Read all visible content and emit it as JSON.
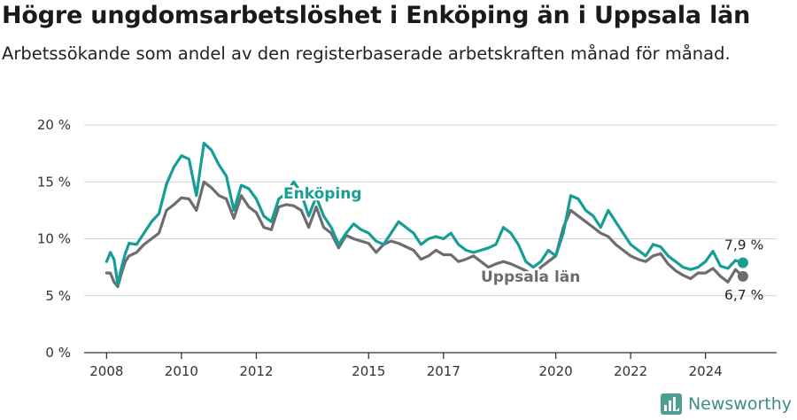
{
  "header": {
    "title": "Högre ungdomsarbetslöshet i Enköping än i Uppsala län",
    "subtitle": "Arbetssökande som andel av den registerbaserade arbetskraften månad för månad."
  },
  "brand": {
    "name": "Newsworthy",
    "icon": "newsworthy-logo-icon"
  },
  "colors": {
    "enkoping": "#169e94",
    "uppsala": "#6d6d71",
    "grid": "#d4d4d4",
    "axis": "#333333"
  },
  "chart_data": {
    "type": "line",
    "title": "Högre ungdomsarbetslöshet i Enköping än i Uppsala län",
    "subtitle": "Arbetssökande som andel av den registerbaserade arbetskraften månad för månad.",
    "xlabel": "",
    "ylabel": "",
    "ylim": [
      0,
      20
    ],
    "xlim": [
      2007.4,
      2025.9
    ],
    "y_ticks": [
      0,
      5,
      10,
      15,
      20
    ],
    "y_tick_labels": [
      "0 %",
      "5 %",
      "10 %",
      "15 %",
      "20 %"
    ],
    "x_ticks": [
      2008,
      2010,
      2012,
      2015,
      2017,
      2020,
      2022,
      2024
    ],
    "x_tick_labels": [
      "2008",
      "2010",
      "2012",
      "2015",
      "2017",
      "2020",
      "2022",
      "2024"
    ],
    "grid": true,
    "legend": "inline",
    "series": [
      {
        "name": "Enköping",
        "color": "#169e94",
        "end_label": "7,9 %",
        "x": [
          2008.0,
          2008.1,
          2008.2,
          2008.3,
          2008.4,
          2008.5,
          2008.6,
          2008.8,
          2009.0,
          2009.2,
          2009.4,
          2009.6,
          2009.8,
          2010.0,
          2010.2,
          2010.4,
          2010.6,
          2010.8,
          2011.0,
          2011.2,
          2011.4,
          2011.6,
          2011.8,
          2012.0,
          2012.2,
          2012.4,
          2012.6,
          2012.8,
          2013.0,
          2013.2,
          2013.4,
          2013.6,
          2013.8,
          2014.0,
          2014.2,
          2014.4,
          2014.6,
          2014.8,
          2015.0,
          2015.2,
          2015.4,
          2015.6,
          2015.8,
          2016.0,
          2016.2,
          2016.4,
          2016.6,
          2016.8,
          2017.0,
          2017.2,
          2017.4,
          2017.6,
          2017.8,
          2018.0,
          2018.2,
          2018.4,
          2018.6,
          2018.8,
          2019.0,
          2019.2,
          2019.4,
          2019.6,
          2019.8,
          2020.0,
          2020.2,
          2020.4,
          2020.6,
          2020.8,
          2021.0,
          2021.2,
          2021.4,
          2021.6,
          2021.8,
          2022.0,
          2022.2,
          2022.4,
          2022.6,
          2022.8,
          2023.0,
          2023.2,
          2023.4,
          2023.6,
          2023.8,
          2024.0,
          2024.2,
          2024.4,
          2024.6,
          2024.8,
          2025.0
        ],
        "y": [
          8.0,
          8.8,
          8.2,
          6.0,
          7.5,
          8.7,
          9.6,
          9.5,
          10.5,
          11.5,
          12.2,
          14.8,
          16.3,
          17.3,
          17.0,
          13.8,
          18.4,
          17.8,
          16.5,
          15.5,
          12.5,
          14.7,
          14.4,
          13.5,
          12.0,
          11.5,
          13.5,
          14.0,
          15.0,
          14.0,
          12.0,
          13.7,
          12.0,
          11.0,
          9.5,
          10.5,
          11.3,
          10.8,
          10.5,
          9.8,
          9.5,
          10.5,
          11.5,
          11.0,
          10.5,
          9.5,
          10.0,
          10.2,
          10.0,
          10.5,
          9.5,
          9.0,
          8.8,
          9.0,
          9.2,
          9.5,
          11.0,
          10.5,
          9.5,
          8.0,
          7.5,
          8.0,
          9.0,
          8.5,
          10.5,
          13.8,
          13.5,
          12.5,
          12.0,
          11.0,
          12.5,
          11.5,
          10.5,
          9.5,
          9.0,
          8.5,
          9.5,
          9.3,
          8.5,
          8.0,
          7.5,
          7.3,
          7.5,
          8.0,
          8.9,
          7.6,
          7.4,
          8.1,
          7.9
        ]
      },
      {
        "name": "Uppsala län",
        "color": "#6d6d71",
        "end_label": "6,7 %",
        "x": [
          2008.0,
          2008.1,
          2008.2,
          2008.3,
          2008.4,
          2008.5,
          2008.6,
          2008.8,
          2009.0,
          2009.2,
          2009.4,
          2009.6,
          2009.8,
          2010.0,
          2010.2,
          2010.4,
          2010.6,
          2010.8,
          2011.0,
          2011.2,
          2011.4,
          2011.6,
          2011.8,
          2012.0,
          2012.2,
          2012.4,
          2012.6,
          2012.8,
          2013.0,
          2013.2,
          2013.4,
          2013.6,
          2013.8,
          2014.0,
          2014.2,
          2014.4,
          2014.6,
          2014.8,
          2015.0,
          2015.2,
          2015.4,
          2015.6,
          2015.8,
          2016.0,
          2016.2,
          2016.4,
          2016.6,
          2016.8,
          2017.0,
          2017.2,
          2017.4,
          2017.6,
          2017.8,
          2018.0,
          2018.2,
          2018.4,
          2018.6,
          2018.8,
          2019.0,
          2019.2,
          2019.4,
          2019.6,
          2019.8,
          2020.0,
          2020.2,
          2020.4,
          2020.6,
          2020.8,
          2021.0,
          2021.2,
          2021.4,
          2021.6,
          2021.8,
          2022.0,
          2022.2,
          2022.4,
          2022.6,
          2022.8,
          2023.0,
          2023.2,
          2023.4,
          2023.6,
          2023.8,
          2024.0,
          2024.2,
          2024.4,
          2024.6,
          2024.8,
          2025.0
        ],
        "y": [
          7.0,
          7.0,
          6.2,
          5.8,
          7.0,
          8.0,
          8.5,
          8.8,
          9.5,
          10.0,
          10.5,
          12.5,
          13.0,
          13.6,
          13.5,
          12.5,
          15.0,
          14.5,
          13.8,
          13.5,
          11.8,
          13.8,
          12.8,
          12.3,
          11.0,
          10.8,
          12.8,
          13.0,
          12.9,
          12.5,
          11.0,
          12.8,
          11.0,
          10.5,
          9.2,
          10.3,
          10.0,
          9.8,
          9.6,
          8.8,
          9.5,
          9.8,
          9.6,
          9.3,
          9.0,
          8.2,
          8.5,
          9.0,
          8.6,
          8.6,
          8.0,
          8.2,
          8.5,
          8.0,
          7.5,
          7.8,
          8.0,
          7.8,
          7.5,
          7.2,
          6.8,
          7.5,
          8.0,
          8.5,
          11.0,
          12.5,
          12.0,
          11.5,
          11.0,
          10.5,
          10.2,
          9.5,
          9.0,
          8.5,
          8.2,
          8.0,
          8.5,
          8.7,
          7.8,
          7.2,
          6.8,
          6.5,
          7.0,
          7.0,
          7.4,
          6.7,
          6.2,
          7.3,
          6.7
        ]
      }
    ]
  }
}
